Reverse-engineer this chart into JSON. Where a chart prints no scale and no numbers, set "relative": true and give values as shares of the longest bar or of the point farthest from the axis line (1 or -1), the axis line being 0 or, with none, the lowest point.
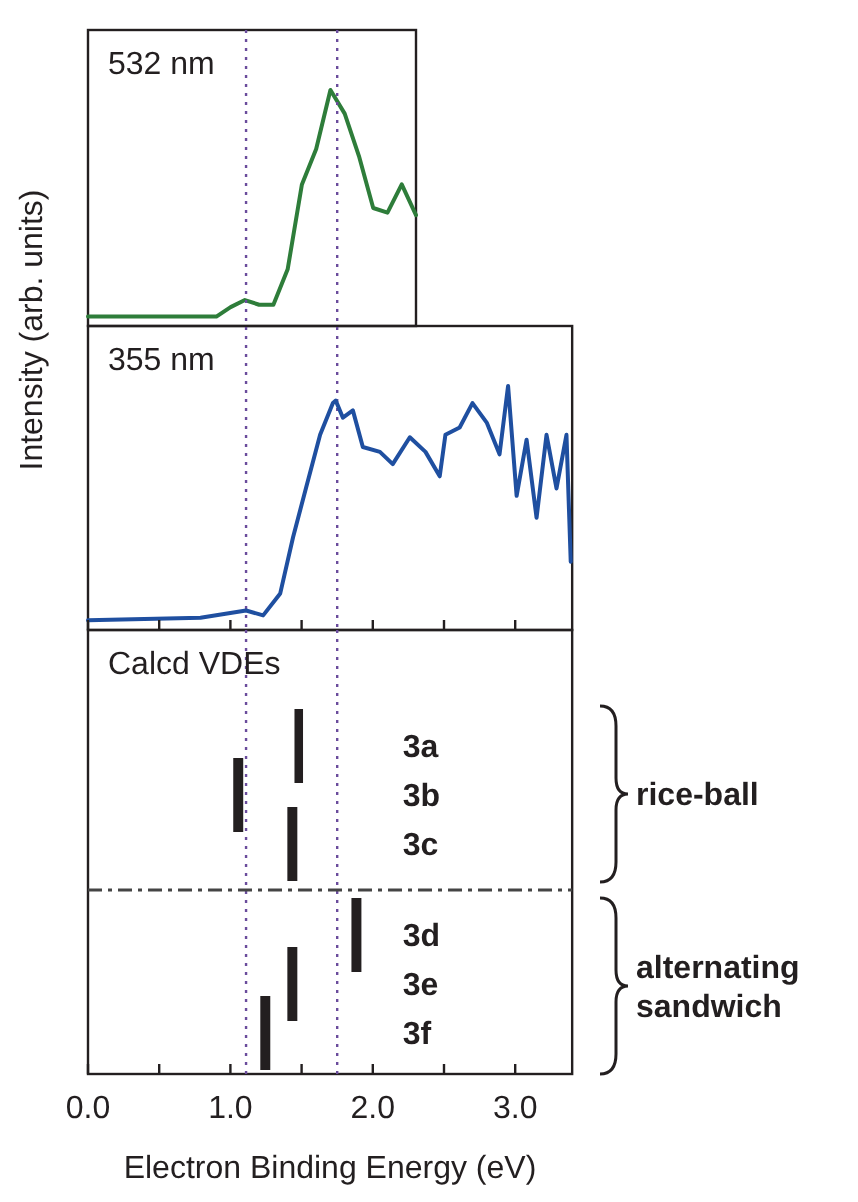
{
  "chart_data": [
    {
      "type": "line",
      "title": "532 nm",
      "relative": true,
      "tick_labels": false,
      "line_style": "solid",
      "categories": [
        null,
        null,
        null,
        null,
        null,
        null,
        null,
        null,
        null,
        null,
        null,
        null,
        null,
        null,
        null,
        null,
        null,
        null,
        null,
        null,
        null,
        null,
        null,
        null
      ],
      "series": [
        {
          "color": "#2e7d3a",
          "values": [
            0.04,
            0.04,
            0.04,
            0.04,
            0.04,
            0.04,
            0.04,
            0.04,
            0.04,
            0.04,
            0.08,
            0.11,
            0.09,
            0.09,
            0.24,
            0.6,
            0.75,
            1.0,
            0.9,
            0.72,
            0.5,
            0.48,
            0.6,
            0.47
          ]
        }
      ]
    },
    {
      "type": "line",
      "title": "355 nm",
      "ylabel": "Intensity (arb. units)",
      "relative": true,
      "tick_labels": false,
      "line_style": "solid",
      "xlim": [
        0,
        3.4
      ],
      "xticks": [
        0,
        0.5,
        1,
        1.5,
        2,
        2.5,
        3
      ],
      "series": [
        {
          "color": "#1f4fa0",
          "x": [
            0,
            0.79,
            1.11,
            1.23,
            1.35,
            1.44,
            1.53,
            1.63,
            1.72,
            1.74,
            1.79,
            1.86,
            1.93,
            2.05,
            2.14,
            2.26,
            2.37,
            2.47,
            2.51,
            2.61,
            2.7,
            2.8,
            2.89,
            2.95,
            3.01,
            3.08,
            3.15,
            3.22,
            3.29,
            3.36,
            3.39
          ],
          "values": [
            0.04,
            0.05,
            0.08,
            0.06,
            0.15,
            0.38,
            0.58,
            0.8,
            0.93,
            0.94,
            0.87,
            0.9,
            0.75,
            0.73,
            0.68,
            0.79,
            0.73,
            0.63,
            0.8,
            0.83,
            0.93,
            0.85,
            0.72,
            1.0,
            0.55,
            0.78,
            0.46,
            0.8,
            0.58,
            0.8,
            0.28
          ]
        }
      ],
      "ref_lines": [
        {
          "axis": "x",
          "value": 1.11,
          "color": "#6a4c9c",
          "line_style": "dotted"
        },
        {
          "axis": "x",
          "value": 1.75,
          "color": "#6a4c9c",
          "line_style": "dotted"
        }
      ]
    },
    {
      "type": "bar",
      "orientation": "horizontal",
      "title": "Calcd VDEs",
      "xlabel": "Electron Binding Energy (eV)",
      "categories": [
        "3a",
        "3b",
        "3c",
        "3d",
        "3e",
        "3f"
      ],
      "base": [
        1.45,
        1.02,
        1.4,
        1.85,
        1.4,
        1.21
      ],
      "values": [
        0.06,
        0.07,
        0.07,
        0.07,
        0.07,
        0.07
      ],
      "color": "#231f20",
      "xlim": [
        0,
        3.4
      ],
      "xticks": [
        {
          "value": 0,
          "label": "0.0"
        },
        {
          "value": 0.5,
          "label": null
        },
        {
          "value": 1,
          "label": "1.0"
        },
        {
          "value": 1.5,
          "label": null
        },
        {
          "value": 2,
          "label": "2.0"
        },
        {
          "value": 2.5,
          "label": null
        },
        {
          "value": 3,
          "label": "3.0"
        }
      ],
      "annotations": [
        "rice-ball",
        "alternating sandwich"
      ],
      "ref_lines": [
        {
          "axis": "x",
          "value": 1.11,
          "color": "#6a4c9c",
          "line_style": "dotted"
        },
        {
          "axis": "x",
          "value": 1.75,
          "color": "#6a4c9c",
          "line_style": "dotted"
        }
      ]
    }
  ]
}
